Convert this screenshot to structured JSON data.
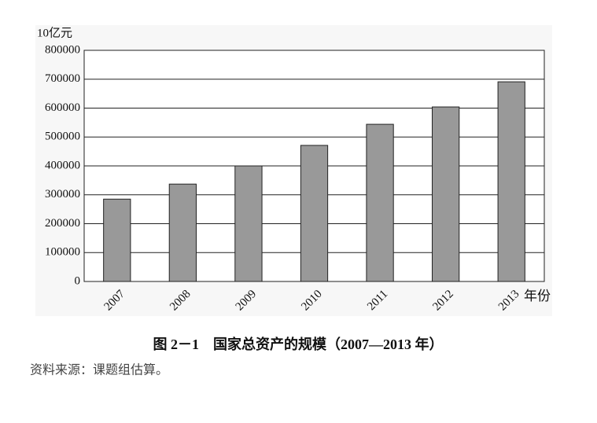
{
  "chart_data": {
    "type": "bar",
    "y_label": "10亿元",
    "x_label": "年份",
    "categories": [
      "2007",
      "2008",
      "2009",
      "2010",
      "2011",
      "2012",
      "2013"
    ],
    "values": [
      285000,
      337000,
      400000,
      471000,
      544000,
      604000,
      691000
    ],
    "color": "#999999",
    "ylim": [
      0,
      800000
    ],
    "yticks": [
      0,
      100000,
      200000,
      300000,
      400000,
      500000,
      600000,
      700000,
      800000
    ],
    "grid": true,
    "caption": "图 2－1　国家总资产的规模（2007—2013 年）",
    "source": "资料来源：课题组估算。"
  }
}
